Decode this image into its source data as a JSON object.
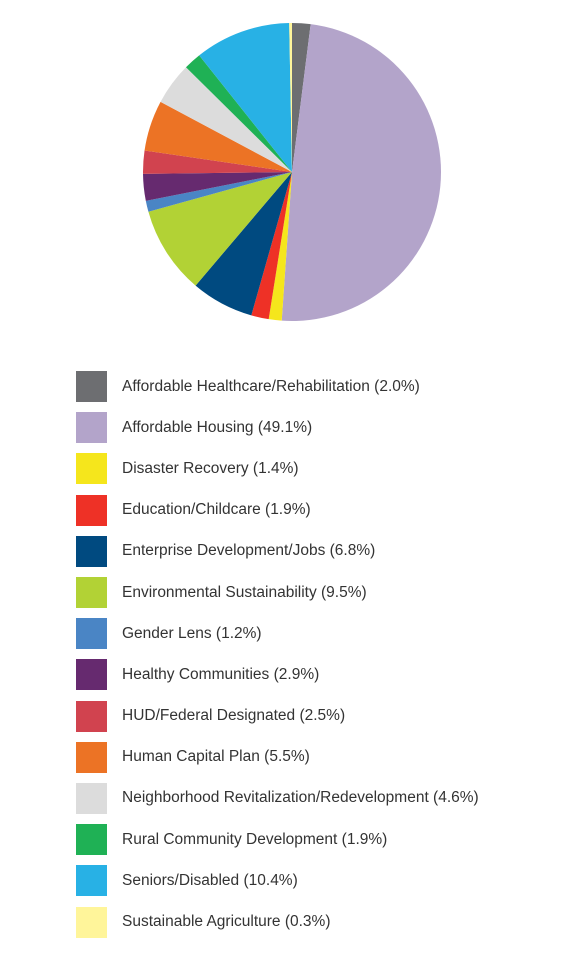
{
  "chart_data": {
    "type": "pie",
    "title": "",
    "legend_position": "bottom",
    "slices": [
      {
        "label": "Affordable Healthcare/Rehabilitation (2.0%)",
        "value": 2.0,
        "color": "#6d6e71"
      },
      {
        "label": "Affordable Housing (49.1%)",
        "value": 49.1,
        "color": "#b3a4ca"
      },
      {
        "label": "Disaster Recovery (1.4%)",
        "value": 1.4,
        "color": "#f5e61c"
      },
      {
        "label": "Education/Childcare (1.9%)",
        "value": 1.9,
        "color": "#ee3126"
      },
      {
        "label": "Enterprise Development/Jobs (6.8%)",
        "value": 6.8,
        "color": "#004a80"
      },
      {
        "label": "Environmental Sustainability (9.5%)",
        "value": 9.5,
        "color": "#b2d235"
      },
      {
        "label": "Gender Lens (1.2%)",
        "value": 1.2,
        "color": "#4a85c5"
      },
      {
        "label": "Healthy Communities (2.9%)",
        "value": 2.9,
        "color": "#662a6f"
      },
      {
        "label": "HUD/Federal Designated (2.5%)",
        "value": 2.5,
        "color": "#d1434f"
      },
      {
        "label": "Human Capital Plan (5.5%)",
        "value": 5.5,
        "color": "#ec7325"
      },
      {
        "label": "Neighborhood Revitalization/Redevelopment (4.6%)",
        "value": 4.6,
        "color": "#dcdcdc"
      },
      {
        "label": "Rural Community Development (1.9%)",
        "value": 1.9,
        "color": "#1fb155"
      },
      {
        "label": "Seniors/Disabled (10.4%)",
        "value": 10.4,
        "color": "#28b1e5"
      },
      {
        "label": "Sustainable Agriculture (0.3%)",
        "value": 0.3,
        "color": "#fff59a"
      }
    ]
  }
}
